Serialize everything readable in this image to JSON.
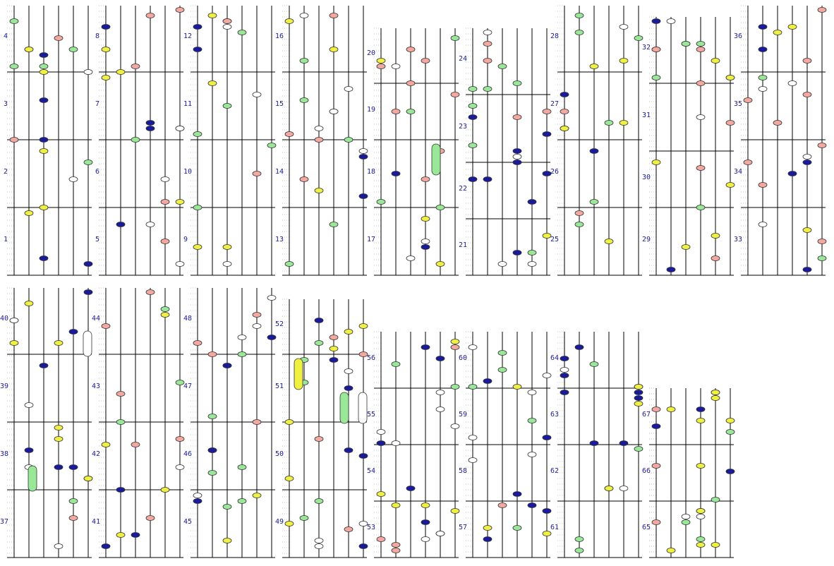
{
  "title": "",
  "measure_numbers": [
    "1",
    "2",
    "3",
    "4",
    "5",
    "6",
    "7",
    "8",
    "9",
    "10",
    "11",
    "12",
    "13",
    "14",
    "15",
    "16",
    "17",
    "18",
    "19",
    "20",
    "21",
    "22",
    "23",
    "24",
    "25",
    "26",
    "27",
    "28",
    "29",
    "30",
    "31",
    "32",
    "33",
    "34",
    "35",
    "36",
    "37",
    "38",
    "39",
    "40",
    "41",
    "42",
    "43",
    "44",
    "45",
    "46",
    "47",
    "48",
    "49",
    "50",
    "51",
    "52",
    "53",
    "54",
    "55",
    "56",
    "57",
    "58",
    "59",
    "60",
    "61",
    "62",
    "63",
    "64",
    "65",
    "66",
    "67"
  ],
  "note_colors": {
    "blue": "#1a1a9c",
    "pink": "#f4a8a0",
    "green": "#98e898",
    "yellow": "#f0f040",
    "white": "#ffffff"
  },
  "strip_count": 17
}
